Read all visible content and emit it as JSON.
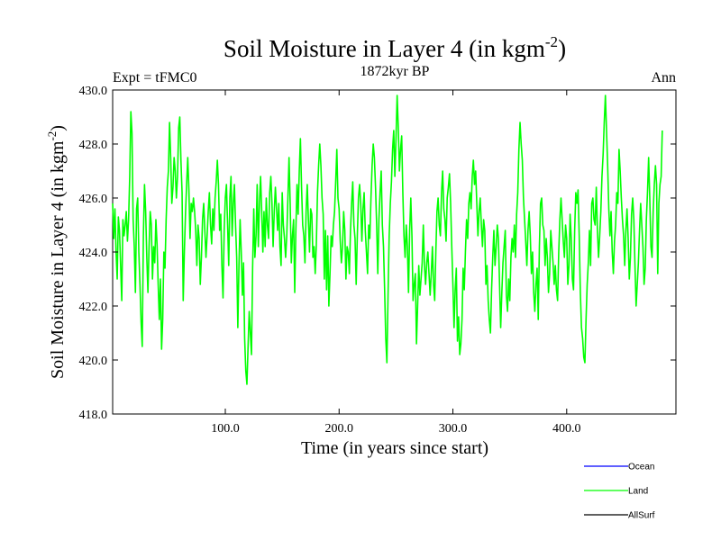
{
  "chart_data": {
    "type": "line",
    "title": "Soil Moisture in Layer 4 (in kgm",
    "title_sup": "-2",
    "title_close": ")",
    "subtitle": "1872kyr BP",
    "left_label": "Expt = tFMC0",
    "right_label": "Ann",
    "xlabel": "Time (in years since start)",
    "ylabel": "Soil Moisture in Layer 4 (in kgm",
    "ylabel_sup": "-2",
    "ylabel_close": ")",
    "xlim": [
      1,
      496
    ],
    "ylim": [
      418.0,
      430.0
    ],
    "x_ticks": [
      {
        "value": 100,
        "label": "100.0"
      },
      {
        "value": 200,
        "label": "200.0"
      },
      {
        "value": 300,
        "label": "300.0"
      },
      {
        "value": 400,
        "label": "400.0"
      }
    ],
    "y_ticks": [
      {
        "value": 418,
        "label": "418.0"
      },
      {
        "value": 420,
        "label": "420.0"
      },
      {
        "value": 422,
        "label": "422.0"
      },
      {
        "value": 424,
        "label": "424.0"
      },
      {
        "value": 426,
        "label": "426.0"
      },
      {
        "value": 428,
        "label": "428.0"
      },
      {
        "value": 430,
        "label": "430.0"
      }
    ],
    "legend": [
      {
        "name": "Ocean",
        "color": "#0000ff"
      },
      {
        "name": "Land",
        "color": "#00ff00"
      },
      {
        "name": "AllSurf",
        "color": "#000000"
      }
    ],
    "series": [
      {
        "name": "Land",
        "color": "#00ff00",
        "start_x": 1,
        "step": 1,
        "values": [
          425.8,
          424.5,
          425.6,
          424.0,
          423.0,
          425.3,
          424.8,
          423.5,
          422.2,
          425.2,
          424.6,
          425.0,
          425.5,
          424.4,
          425.2,
          426.8,
          429.2,
          428.4,
          425.2,
          424.2,
          422.5,
          425.6,
          426.0,
          424.0,
          422.8,
          421.4,
          420.5,
          424.6,
          426.5,
          425.5,
          423.8,
          422.5,
          424.2,
          425.5,
          425.0,
          423.0,
          424.2,
          423.6,
          425.2,
          424.3,
          422.8,
          421.5,
          423.0,
          420.4,
          421.5,
          424.0,
          423.4,
          425.2,
          426.4,
          427.0,
          428.8,
          427.5,
          425.8,
          426.4,
          427.5,
          427.0,
          426.0,
          426.8,
          428.6,
          429.0,
          427.4,
          426.2,
          422.2,
          424.0,
          425.4,
          426.5,
          427.5,
          426.3,
          424.5,
          425.8,
          425.5,
          426.0,
          425.5,
          424.8,
          423.5,
          425.0,
          424.5,
          422.8,
          423.8,
          425.2,
          425.8,
          424.8,
          423.8,
          424.6,
          425.5,
          426.2,
          425.0,
          424.3,
          425.6,
          424.8,
          426.0,
          426.6,
          427.4,
          426.5,
          424.8,
          425.4,
          423.5,
          422.3,
          424.8,
          426.0,
          426.5,
          425.0,
          423.5,
          426.0,
          426.8,
          424.6,
          425.8,
          426.5,
          425.0,
          423.8,
          421.2,
          423.5,
          425.2,
          424.0,
          422.4,
          423.6,
          420.8,
          419.6,
          419.1,
          420.5,
          421.8,
          421.0,
          420.2,
          423.4,
          425.6,
          423.8,
          424.6,
          426.5,
          424.2,
          425.8,
          426.8,
          425.5,
          424.0,
          425.5,
          424.2,
          426.0,
          425.0,
          424.5,
          426.2,
          426.8,
          425.8,
          424.2,
          425.5,
          426.4,
          425.6,
          424.8,
          425.8,
          424.2,
          423.5,
          426.2,
          425.0,
          424.5,
          423.8,
          424.6,
          426.0,
          427.5,
          425.8,
          423.6,
          424.6,
          425.2,
          422.5,
          424.8,
          426.5,
          425.4,
          427.0,
          428.2,
          426.4,
          425.0,
          424.6,
          423.6,
          425.5,
          426.5,
          425.2,
          424.0,
          425.6,
          425.4,
          423.8,
          424.2,
          423.2,
          424.3,
          426.2,
          427.2,
          428.0,
          427.2,
          426.0,
          425.4,
          423.0,
          424.8,
          422.6,
          424.6,
          422.0,
          423.2,
          424.6,
          424.2,
          425.0,
          425.5,
          426.6,
          427.8,
          426.0,
          425.6,
          424.4,
          423.6,
          424.2,
          425.5,
          424.8,
          423.0,
          424.2,
          424.0,
          423.2,
          424.8,
          425.8,
          426.6,
          425.0,
          424.5,
          422.8,
          424.6,
          426.0,
          426.5,
          425.8,
          424.4,
          425.6,
          426.2,
          424.8,
          424.0,
          423.2,
          425.0,
          424.5,
          426.0,
          427.2,
          428.0,
          427.5,
          426.4,
          425.0,
          423.2,
          425.2,
          426.2,
          427.0,
          425.0,
          424.2,
          422.6,
          420.8,
          419.9,
          422.4,
          424.6,
          425.8,
          426.6,
          427.8,
          428.5,
          426.8,
          428.2,
          429.8,
          428.6,
          427.0,
          427.8,
          428.3,
          426.2,
          424.6,
          423.8,
          425.0,
          424.2,
          422.5,
          424.8,
          426.0,
          424.6,
          422.2,
          422.8,
          423.2,
          420.6,
          422.0,
          423.5,
          422.4,
          423.0,
          423.6,
          425.0,
          423.5,
          422.8,
          423.6,
          424.0,
          423.2,
          422.4,
          423.2,
          424.2,
          422.8,
          422.2,
          424.0,
          425.5,
          426.0,
          425.0,
          424.6,
          426.2,
          427.0,
          425.6,
          425.2,
          424.4,
          426.0,
          426.4,
          426.9,
          425.8,
          424.2,
          422.8,
          421.2,
          422.6,
          423.4,
          420.7,
          421.6,
          420.2,
          420.6,
          421.5,
          423.4,
          422.6,
          424.0,
          425.2,
          424.5,
          425.8,
          426.2,
          425.6,
          426.8,
          427.4,
          426.5,
          427.0,
          425.8,
          424.6,
          425.5,
          426.0,
          425.0,
          424.2,
          425.2,
          424.8,
          422.8,
          423.5,
          422.2,
          421.5,
          421.0,
          422.6,
          423.8,
          424.8,
          423.5,
          424.2,
          425.0,
          424.5,
          422.8,
          421.2,
          422.5,
          423.6,
          424.2,
          424.8,
          422.4,
          421.8,
          423.0,
          422.2,
          423.8,
          424.5,
          424.0,
          425.0,
          423.8,
          425.4,
          426.2,
          427.8,
          428.8,
          428.0,
          427.4,
          426.0,
          425.2,
          424.4,
          423.5,
          424.8,
          425.5,
          424.6,
          423.2,
          424.0,
          422.5,
          421.8,
          422.8,
          423.4,
          421.5,
          424.2,
          425.8,
          426.0,
          425.0,
          424.8,
          423.5,
          424.5,
          423.8,
          422.5,
          423.2,
          424.8,
          424.2,
          423.6,
          422.8,
          423.5,
          422.6,
          422.2,
          424.0,
          425.2,
          426.0,
          425.2,
          424.4,
          423.8,
          425.0,
          424.5,
          422.8,
          423.5,
          425.4,
          424.5,
          423.0,
          422.6,
          424.8,
          426.2,
          425.8,
          426.3,
          424.6,
          422.5,
          421.2,
          420.8,
          420.1,
          419.9,
          421.5,
          422.8,
          423.6,
          424.8,
          423.5,
          425.8,
          426.0,
          425.2,
          425.0,
          426.4,
          424.8,
          423.8,
          424.6,
          425.5,
          426.8,
          427.6,
          428.8,
          429.8,
          428.5,
          427.2,
          425.6,
          424.6,
          425.5,
          424.0,
          423.2,
          424.4,
          425.0,
          426.2,
          425.8,
          427.8,
          427.0,
          426.0,
          425.2,
          424.6,
          423.5,
          424.8,
          425.6,
          424.5,
          423.0,
          423.8,
          425.4,
          426.0,
          425.2,
          423.5,
          422.0,
          422.8,
          423.6,
          424.8,
          425.8,
          425.0,
          424.2,
          422.8,
          423.4,
          425.2,
          426.2,
          427.5,
          426.0,
          424.2,
          423.8,
          425.5,
          426.5,
          427.2,
          426.5,
          423.2,
          425.8,
          426.5,
          426.8,
          428.5
        ]
      }
    ]
  }
}
